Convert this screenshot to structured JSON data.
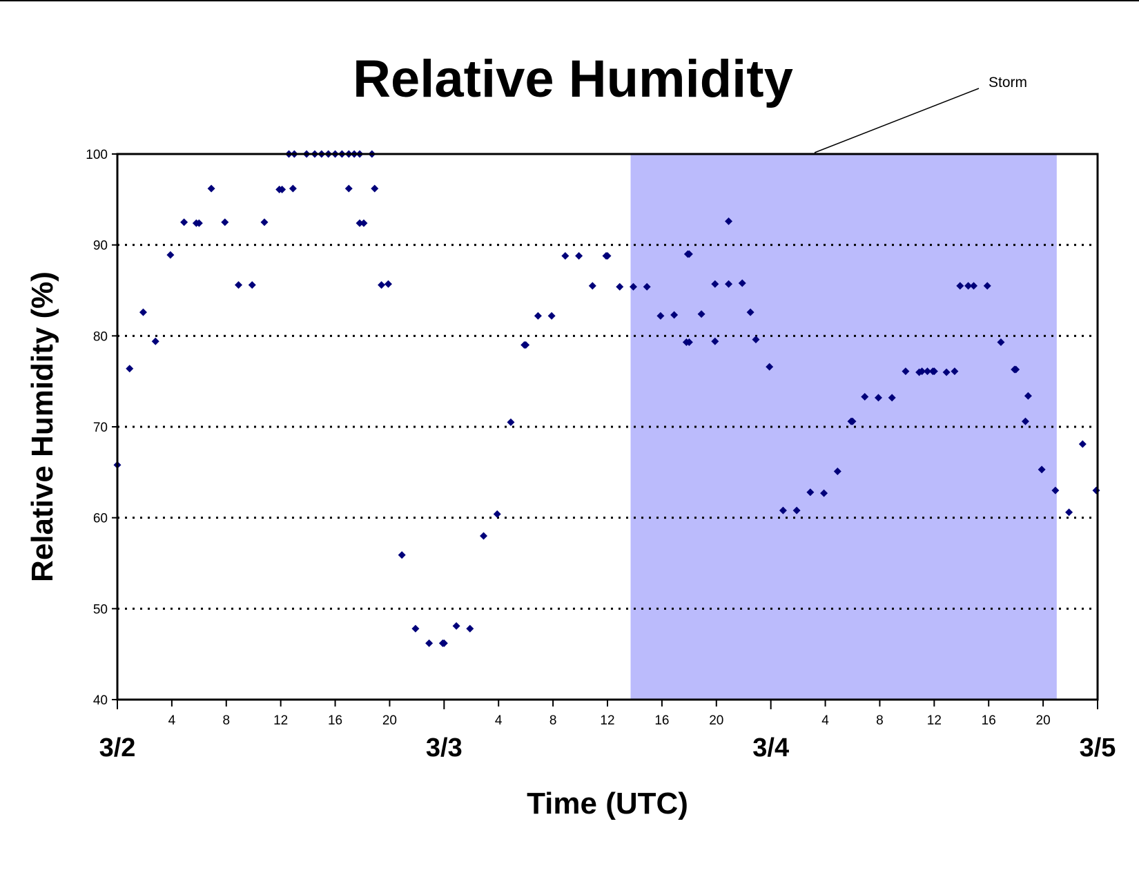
{
  "chart_data": {
    "type": "scatter",
    "title": "Relative Humidity",
    "xlabel": "Time (UTC)",
    "ylabel": "Relative Humidity (%)",
    "ylim": [
      40,
      100
    ],
    "yticks": [
      40,
      50,
      60,
      70,
      80,
      90,
      100
    ],
    "xlim_hours": [
      0,
      72
    ],
    "x_unit": "hours after 3/2 00 UTC",
    "date_labels": [
      {
        "label": "3/2",
        "hour": 0
      },
      {
        "label": "3/3",
        "hour": 24
      },
      {
        "label": "3/4",
        "hour": 48
      },
      {
        "label": "3/5",
        "hour": 72
      }
    ],
    "hour_tick_labels": [
      "4",
      "8",
      "12",
      "16",
      "20",
      "4",
      "8",
      "12",
      "16",
      "20",
      "4",
      "8",
      "12",
      "16",
      "20"
    ],
    "grid": "horizontal dotted lines at 50, 60, 70, 80, 90",
    "marker_color": "#00007a",
    "shaded_region": {
      "label": "Storm",
      "start_hour": 37.7,
      "end_hour": 69.0,
      "color": "#bbbbfc"
    },
    "points": [
      [
        0.0,
        65.8
      ],
      [
        0.9,
        76.4
      ],
      [
        1.9,
        82.6
      ],
      [
        2.8,
        79.4
      ],
      [
        3.9,
        88.9
      ],
      [
        4.9,
        92.5
      ],
      [
        5.8,
        92.4
      ],
      [
        6.0,
        92.4
      ],
      [
        6.9,
        96.2
      ],
      [
        7.9,
        92.5
      ],
      [
        8.9,
        85.6
      ],
      [
        9.9,
        85.6
      ],
      [
        10.8,
        92.5
      ],
      [
        11.9,
        96.1
      ],
      [
        12.1,
        96.1
      ],
      [
        12.6,
        100
      ],
      [
        12.9,
        96.2
      ],
      [
        13.0,
        100
      ],
      [
        13.9,
        100
      ],
      [
        14.5,
        100
      ],
      [
        15.0,
        100
      ],
      [
        15.5,
        100
      ],
      [
        16.0,
        100
      ],
      [
        16.5,
        100
      ],
      [
        17.0,
        100
      ],
      [
        17.4,
        100
      ],
      [
        17.8,
        100
      ],
      [
        17.0,
        96.2
      ],
      [
        17.8,
        92.4
      ],
      [
        18.1,
        92.4
      ],
      [
        18.7,
        100
      ],
      [
        18.9,
        96.2
      ],
      [
        19.4,
        85.6
      ],
      [
        19.9,
        85.7
      ],
      [
        20.9,
        55.9
      ],
      [
        21.9,
        47.8
      ],
      [
        22.9,
        46.2
      ],
      [
        23.9,
        46.2
      ],
      [
        24.0,
        46.2
      ],
      [
        24.9,
        48.1
      ],
      [
        25.9,
        47.8
      ],
      [
        26.9,
        58.0
      ],
      [
        27.9,
        60.4
      ],
      [
        28.9,
        70.5
      ],
      [
        29.9,
        79.0
      ],
      [
        30.0,
        79.0
      ],
      [
        30.9,
        82.2
      ],
      [
        31.9,
        82.2
      ],
      [
        32.9,
        88.8
      ],
      [
        33.9,
        88.8
      ],
      [
        34.9,
        85.5
      ],
      [
        35.9,
        88.8
      ],
      [
        36.0,
        88.8
      ],
      [
        36.9,
        85.4
      ],
      [
        37.9,
        85.4
      ],
      [
        38.9,
        85.4
      ],
      [
        39.9,
        82.2
      ],
      [
        40.9,
        82.3
      ],
      [
        41.8,
        79.3
      ],
      [
        42.0,
        79.3
      ],
      [
        41.9,
        89.0
      ],
      [
        42.0,
        89.0
      ],
      [
        42.9,
        82.4
      ],
      [
        43.9,
        79.4
      ],
      [
        43.9,
        85.7
      ],
      [
        44.9,
        85.7
      ],
      [
        44.9,
        92.6
      ],
      [
        45.9,
        85.8
      ],
      [
        46.5,
        82.6
      ],
      [
        46.9,
        79.6
      ],
      [
        47.9,
        76.6
      ],
      [
        48.9,
        60.8
      ],
      [
        49.9,
        60.8
      ],
      [
        50.9,
        62.8
      ],
      [
        51.9,
        62.7
      ],
      [
        52.9,
        65.1
      ],
      [
        53.9,
        70.6
      ],
      [
        54.0,
        70.6
      ],
      [
        54.9,
        73.3
      ],
      [
        55.9,
        73.2
      ],
      [
        56.9,
        73.2
      ],
      [
        57.9,
        76.1
      ],
      [
        58.9,
        76.0
      ],
      [
        59.1,
        76.1
      ],
      [
        59.5,
        76.1
      ],
      [
        59.9,
        76.1
      ],
      [
        60.0,
        76.1
      ],
      [
        60.9,
        76.0
      ],
      [
        61.5,
        76.1
      ],
      [
        61.9,
        85.5
      ],
      [
        62.5,
        85.5
      ],
      [
        62.9,
        85.5
      ],
      [
        63.9,
        85.5
      ],
      [
        64.9,
        79.3
      ],
      [
        65.9,
        76.3
      ],
      [
        66.0,
        76.3
      ],
      [
        66.7,
        70.6
      ],
      [
        66.9,
        73.4
      ],
      [
        67.9,
        65.3
      ],
      [
        68.9,
        63.0
      ],
      [
        69.9,
        60.6
      ],
      [
        70.9,
        68.1
      ],
      [
        71.9,
        63.0
      ]
    ]
  }
}
